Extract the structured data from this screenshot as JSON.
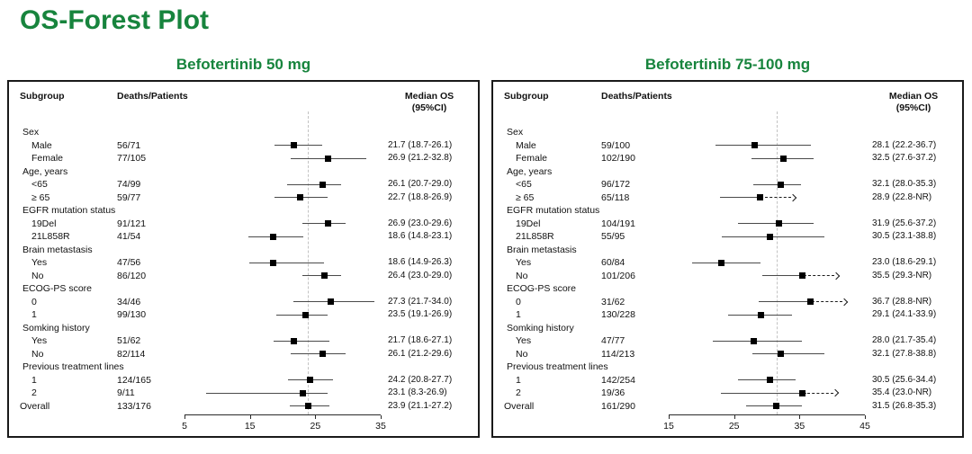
{
  "page": {
    "title": "OS-Forest Plot"
  },
  "columns": {
    "subgroup": "Subgroup",
    "deaths": "Deaths/Patients",
    "median_line1": "Median OS",
    "median_line2": "(95%CI)"
  },
  "colors": {
    "accent_green": "#17843d",
    "marker": "#000000",
    "ci_line": "#4a4a4a",
    "ref_line_grey": "#c3c3c3",
    "border": "#1a1a1a"
  },
  "chart_data": [
    {
      "type": "forest",
      "title": "Befotertinib 50 mg",
      "xticks": [
        5,
        15,
        25,
        35
      ],
      "xlim": [
        5,
        35
      ],
      "ref_line": 23.9,
      "rows": [
        {
          "label": "Sex",
          "group": true
        },
        {
          "label": "Male",
          "indent": true,
          "deaths": "56/71",
          "est": 21.7,
          "lo": 18.7,
          "hi": 26.1,
          "text": "21.7 (18.7-26.1)"
        },
        {
          "label": "Female",
          "indent": true,
          "deaths": "77/105",
          "est": 26.9,
          "lo": 21.2,
          "hi": 32.8,
          "text": "26.9 (21.2-32.8)"
        },
        {
          "label": "Age, years",
          "group": true
        },
        {
          "label": "<65",
          "indent": true,
          "deaths": "74/99",
          "est": 26.1,
          "lo": 20.7,
          "hi": 29.0,
          "text": "26.1 (20.7-29.0)"
        },
        {
          "label": "≥ 65",
          "indent": true,
          "deaths": "59/77",
          "est": 22.7,
          "lo": 18.8,
          "hi": 26.9,
          "text": "22.7 (18.8-26.9)"
        },
        {
          "label": "EGFR mutation status",
          "group": true
        },
        {
          "label": "19Del",
          "indent": true,
          "deaths": "91/121",
          "est": 26.9,
          "lo": 23.0,
          "hi": 29.6,
          "text": "26.9 (23.0-29.6)"
        },
        {
          "label": "21L858R",
          "indent": true,
          "deaths": "41/54",
          "est": 18.6,
          "lo": 14.8,
          "hi": 23.1,
          "text": "18.6 (14.8-23.1)"
        },
        {
          "label": "Brain metastasis",
          "group": true
        },
        {
          "label": "Yes",
          "indent": true,
          "deaths": "47/56",
          "est": 18.6,
          "lo": 14.9,
          "hi": 26.3,
          "text": "18.6 (14.9-26.3)"
        },
        {
          "label": "No",
          "indent": true,
          "deaths": "86/120",
          "est": 26.4,
          "lo": 23.0,
          "hi": 29.0,
          "text": "26.4 (23.0-29.0)"
        },
        {
          "label": "ECOG-PS score",
          "group": true
        },
        {
          "label": "0",
          "indent": true,
          "deaths": "34/46",
          "est": 27.3,
          "lo": 21.7,
          "hi": 34.0,
          "text": "27.3 (21.7-34.0)"
        },
        {
          "label": "1",
          "indent": true,
          "deaths": "99/130",
          "est": 23.5,
          "lo": 19.1,
          "hi": 26.9,
          "text": "23.5 (19.1-26.9)"
        },
        {
          "label": "Somking history",
          "group": true
        },
        {
          "label": "Yes",
          "indent": true,
          "deaths": "51/62",
          "est": 21.7,
          "lo": 18.6,
          "hi": 27.1,
          "text": "21.7 (18.6-27.1)"
        },
        {
          "label": "No",
          "indent": true,
          "deaths": "82/114",
          "est": 26.1,
          "lo": 21.2,
          "hi": 29.6,
          "text": "26.1 (21.2-29.6)"
        },
        {
          "label": "Previous treatment lines",
          "group": true
        },
        {
          "label": "1",
          "indent": true,
          "deaths": "124/165",
          "est": 24.2,
          "lo": 20.8,
          "hi": 27.7,
          "text": "24.2 (20.8-27.7)"
        },
        {
          "label": "2",
          "indent": true,
          "deaths": "9/11",
          "est": 23.1,
          "lo": 8.3,
          "hi": 26.9,
          "text": "23.1 (8.3-26.9)"
        },
        {
          "label": "Overall",
          "deaths": "133/176",
          "est": 23.9,
          "lo": 21.1,
          "hi": 27.2,
          "text": "23.9 (21.1-27.2)"
        }
      ]
    },
    {
      "type": "forest",
      "title": "Befotertinib 75-100 mg",
      "xticks": [
        15,
        25,
        35,
        45
      ],
      "xlim": [
        15,
        45
      ],
      "ref_line": 31.5,
      "rows": [
        {
          "label": "Sex",
          "group": true
        },
        {
          "label": "Male",
          "indent": true,
          "deaths": "59/100",
          "est": 28.1,
          "lo": 22.2,
          "hi": 36.7,
          "text": "28.1 (22.2-36.7)"
        },
        {
          "label": "Female",
          "indent": true,
          "deaths": "102/190",
          "est": 32.5,
          "lo": 27.6,
          "hi": 37.2,
          "text": "32.5 (27.6-37.2)"
        },
        {
          "label": "Age, years",
          "group": true
        },
        {
          "label": "<65",
          "indent": true,
          "deaths": "96/172",
          "est": 32.1,
          "lo": 28.0,
          "hi": 35.3,
          "text": "32.1 (28.0-35.3)"
        },
        {
          "label": "≥ 65",
          "indent": true,
          "deaths": "65/118",
          "est": 28.9,
          "lo": 22.8,
          "hi": "NR",
          "text": "28.9 (22.8-NR)"
        },
        {
          "label": "EGFR mutation status",
          "group": true
        },
        {
          "label": "19Del",
          "indent": true,
          "deaths": "104/191",
          "est": 31.9,
          "lo": 25.6,
          "hi": 37.2,
          "text": "31.9 (25.6-37.2)"
        },
        {
          "label": "21L858R",
          "indent": true,
          "deaths": "55/95",
          "est": 30.5,
          "lo": 23.1,
          "hi": 38.8,
          "text": "30.5 (23.1-38.8)"
        },
        {
          "label": "Brain metastasis",
          "group": true
        },
        {
          "label": "Yes",
          "indent": true,
          "deaths": "60/84",
          "est": 23.0,
          "lo": 18.6,
          "hi": 29.1,
          "text": "23.0 (18.6-29.1)"
        },
        {
          "label": "No",
          "indent": true,
          "deaths": "101/206",
          "est": 35.5,
          "lo": 29.3,
          "hi": "NR",
          "text": "35.5 (29.3-NR)"
        },
        {
          "label": "ECOG-PS score",
          "group": true
        },
        {
          "label": "0",
          "indent": true,
          "deaths": "31/62",
          "est": 36.7,
          "lo": 28.8,
          "hi": "NR",
          "text": "36.7 (28.8-NR)"
        },
        {
          "label": "1",
          "indent": true,
          "deaths": "130/228",
          "est": 29.1,
          "lo": 24.1,
          "hi": 33.9,
          "text": "29.1 (24.1-33.9)"
        },
        {
          "label": "Somking history",
          "group": true
        },
        {
          "label": "Yes",
          "indent": true,
          "deaths": "47/77",
          "est": 28.0,
          "lo": 21.7,
          "hi": 35.4,
          "text": "28.0 (21.7-35.4)"
        },
        {
          "label": "No",
          "indent": true,
          "deaths": "114/213",
          "est": 32.1,
          "lo": 27.8,
          "hi": 38.8,
          "text": "32.1 (27.8-38.8)"
        },
        {
          "label": "Previous treatment lines",
          "group": true
        },
        {
          "label": "1",
          "indent": true,
          "deaths": "142/254",
          "est": 30.5,
          "lo": 25.6,
          "hi": 34.4,
          "text": "30.5 (25.6-34.4)"
        },
        {
          "label": "2",
          "indent": true,
          "deaths": "19/36",
          "est": 35.4,
          "lo": 23.0,
          "hi": "NR",
          "text": "35.4 (23.0-NR)"
        },
        {
          "label": "Overall",
          "deaths": "161/290",
          "est": 31.5,
          "lo": 26.8,
          "hi": 35.3,
          "text": "31.5 (26.8-35.3)"
        }
      ]
    }
  ]
}
